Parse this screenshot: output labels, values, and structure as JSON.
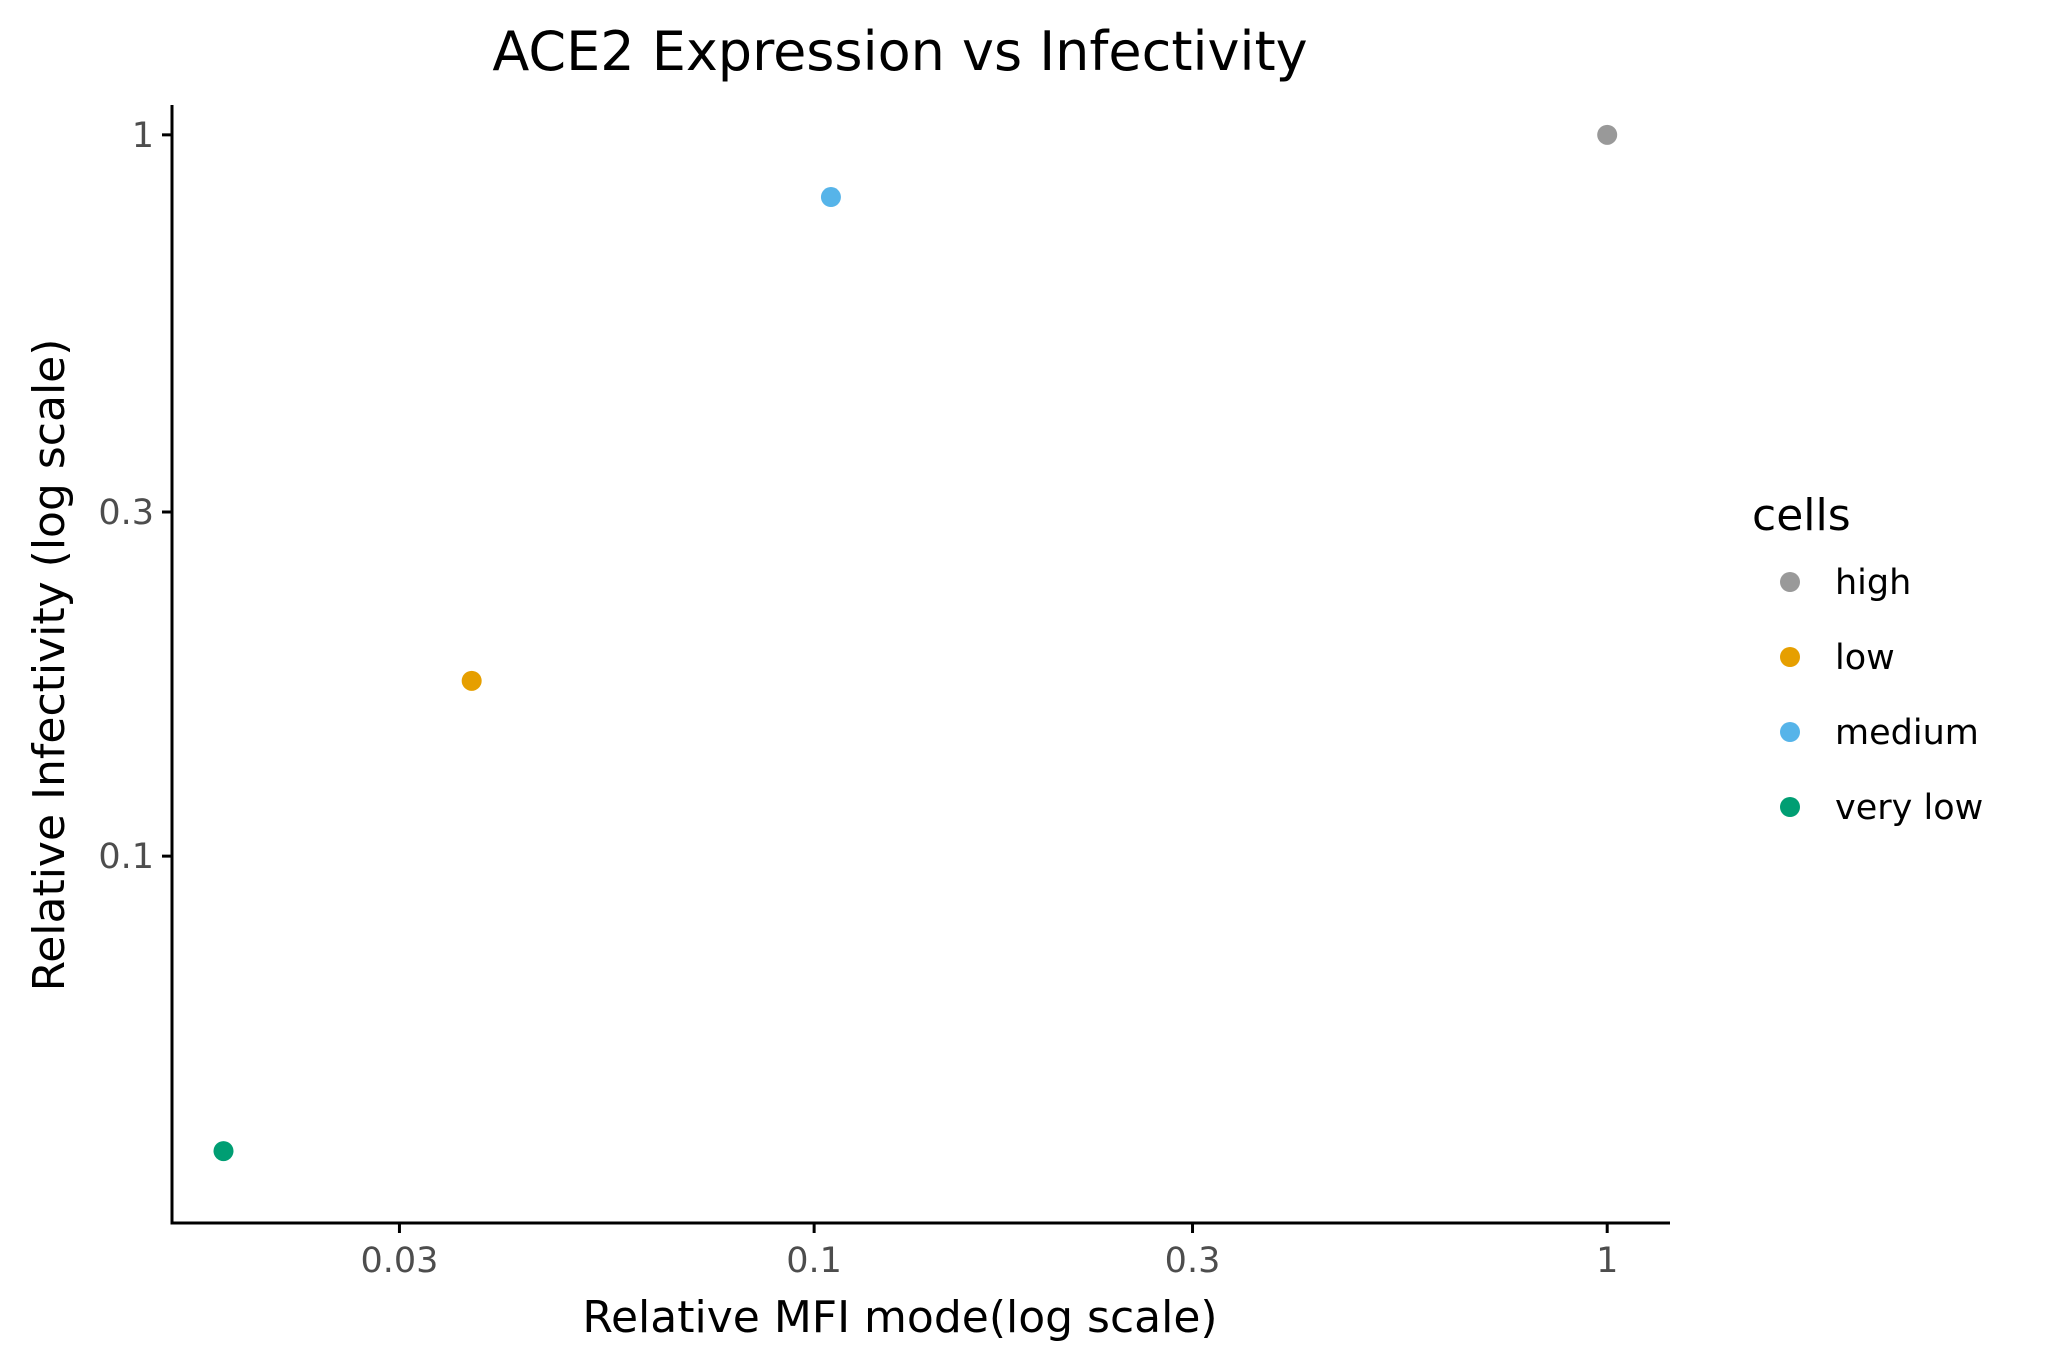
{
  "chart_data": {
    "type": "scatter",
    "title": "ACE2 Expression vs Infectivity",
    "xlabel": "Relative MFI mode(log scale)",
    "ylabel": "Relative Infectivity (log scale)",
    "x_scale": "log",
    "y_scale": "log",
    "xlim": [
      0.0155,
      1.2
    ],
    "ylim": [
      0.031,
      1.1
    ],
    "x_ticks": [
      0.03,
      0.1,
      0.3,
      1
    ],
    "x_tick_labels": [
      "0.03",
      "0.1",
      "0.3",
      "1"
    ],
    "y_ticks": [
      0.1,
      0.3,
      1
    ],
    "y_tick_labels": [
      "0.1",
      "0.3",
      "1"
    ],
    "grid": false,
    "legend": {
      "title": "cells",
      "position": "right"
    },
    "series": [
      {
        "name": "high",
        "color": "#999999",
        "points": [
          {
            "x": 1.0,
            "y": 1.0
          }
        ]
      },
      {
        "name": "low",
        "color": "#E69F00",
        "points": [
          {
            "x": 0.037,
            "y": 0.175
          }
        ]
      },
      {
        "name": "medium",
        "color": "#56B4E9",
        "points": [
          {
            "x": 0.105,
            "y": 0.82
          }
        ]
      },
      {
        "name": "very low",
        "color": "#009E73",
        "points": [
          {
            "x": 0.018,
            "y": 0.039
          }
        ]
      }
    ]
  }
}
